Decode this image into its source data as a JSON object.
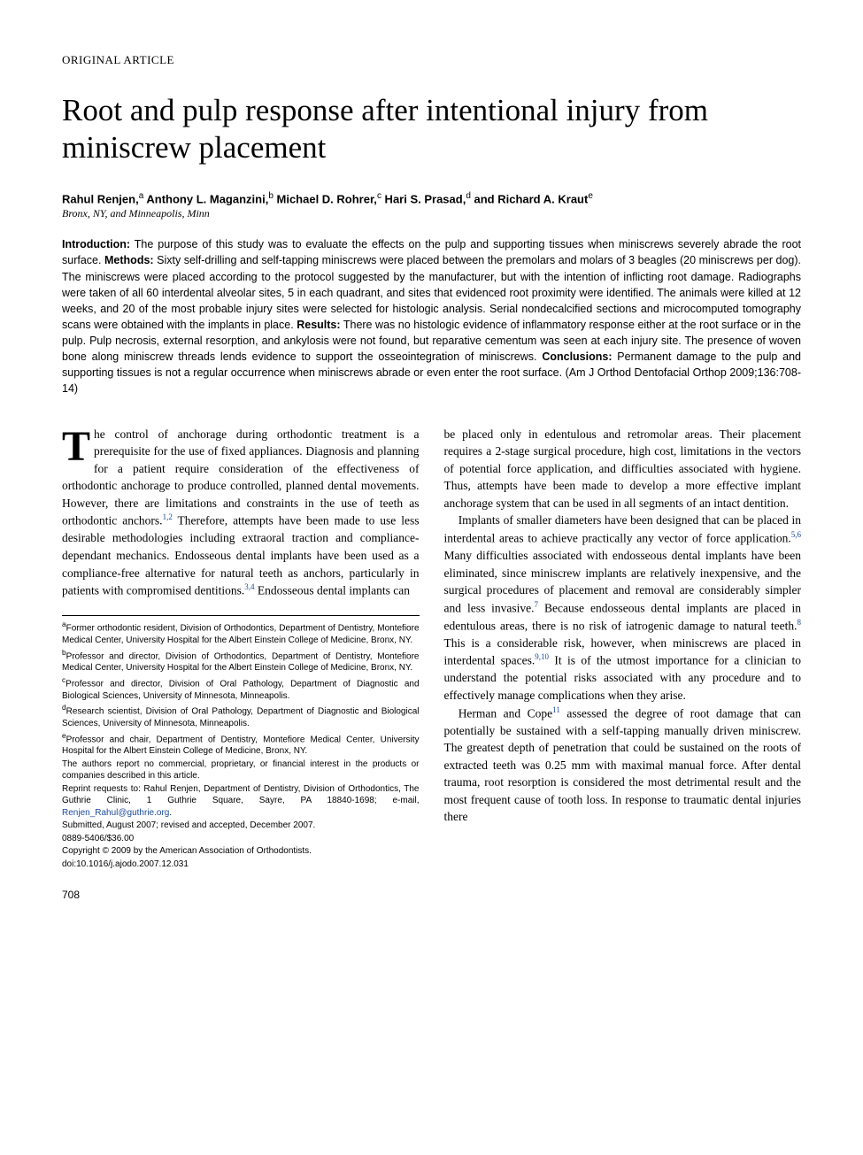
{
  "section_label": "ORIGINAL ARTICLE",
  "title": "Root and pulp response after intentional injury from miniscrew placement",
  "authors_html": "Rahul Renjen,<sup>a</sup> Anthony L. Maganzini,<sup>b</sup> Michael D. Rohrer,<sup>c</sup> Hari S. Prasad,<sup>d</sup> and Richard A. Kraut<sup>e</sup>",
  "affil_line": "Bronx, NY, and Minneapolis, Minn",
  "abstract": {
    "intro_label": "Introduction:",
    "intro": " The purpose of this study was to evaluate the effects on the pulp and supporting tissues when miniscrews severely abrade the root surface. ",
    "methods_label": "Methods:",
    "methods": " Sixty self-drilling and self-tapping miniscrews were placed between the premolars and molars of 3 beagles (20 miniscrews per dog). The miniscrews were placed according to the protocol suggested by the manufacturer, but with the intention of inflicting root damage. Radiographs were taken of all 60 interdental alveolar sites, 5 in each quadrant, and sites that evidenced root proximity were identified. The animals were killed at 12 weeks, and 20 of the most probable injury sites were selected for histologic analysis. Serial nondecalcified sections and microcomputed tomography scans were obtained with the implants in place. ",
    "results_label": "Results:",
    "results": " There was no histologic evidence of inflammatory response either at the root surface or in the pulp. Pulp necrosis, external resorption, and ankylosis were not found, but reparative cementum was seen at each injury site. The presence of woven bone along miniscrew threads lends evidence to support the osseointegration of miniscrews. ",
    "conclusions_label": "Conclusions:",
    "conclusions": " Permanent damage to the pulp and supporting tissues is not a regular occurrence when miniscrews abrade or even enter the root surface. (Am J Orthod Dentofacial Orthop 2009;136:708-14)"
  },
  "body": {
    "col1": {
      "p1_dropcap": "T",
      "p1_rest": "he control of anchorage during orthodontic treatment is a prerequisite for the use of fixed appliances. Diagnosis and planning for a patient require consideration of the effectiveness of orthodontic anchorage to produce controlled, planned dental movements. However, there are limitations and constraints in the use of teeth as orthodontic anchors.",
      "p1_sup1": "1,2",
      "p1_after1": " Therefore, attempts have been made to use less desirable methodologies including extraoral traction and compliance-dependant mechanics. Endosseous dental implants have been used as a compliance-free alternative for natural teeth as anchors, particularly in patients with compromised dentitions.",
      "p1_sup2": "3,4",
      "p1_after2": " Endosseous dental implants can"
    },
    "col2": {
      "p1": "be placed only in edentulous and retromolar areas. Their placement requires a 2-stage surgical procedure, high cost, limitations in the vectors of potential force application, and difficulties associated with hygiene. Thus, attempts have been made to develop a more effective implant anchorage system that can be used in all segments of an intact dentition.",
      "p2_a": "Implants of smaller diameters have been designed that can be placed in interdental areas to achieve practically any vector of force application.",
      "p2_sup1": "5,6",
      "p2_b": " Many difficulties associated with endosseous dental implants have been eliminated, since miniscrew implants are relatively inexpensive, and the surgical procedures of placement and removal are considerably simpler and less invasive.",
      "p2_sup2": "7",
      "p2_c": " Because endosseous dental implants are placed in edentulous areas, there is no risk of iatrogenic damage to natural teeth.",
      "p2_sup3": "8",
      "p2_d": " This is a considerable risk, however, when miniscrews are placed in interdental spaces.",
      "p2_sup4": "9,10",
      "p2_e": " It is of the utmost importance for a clinician to understand the potential risks associated with any procedure and to effectively manage complications when they arise.",
      "p3_a": "Herman and Cope",
      "p3_sup1": "11",
      "p3_b": " assessed the degree of root damage that can potentially be sustained with a self-tapping manually driven miniscrew. The greatest depth of penetration that could be sustained on the roots of extracted teeth was 0.25 mm with maximal manual force. After dental trauma, root resorption is considered the most detrimental result and the most frequent cause of tooth loss. In response to traumatic dental injuries there"
    }
  },
  "footnotes": {
    "a": "Former orthodontic resident, Division of Orthodontics, Department of Dentistry, Montefiore Medical Center, University Hospital for the Albert Einstein College of Medicine, Bronx, NY.",
    "b": "Professor and director, Division of Orthodontics, Department of Dentistry, Montefiore Medical Center, University Hospital for the Albert Einstein College of Medicine, Bronx, NY.",
    "c": "Professor and director, Division of Oral Pathology, Department of Diagnostic and Biological Sciences, University of Minnesota, Minneapolis.",
    "d": "Research scientist, Division of Oral Pathology, Department of Diagnostic and Biological Sciences, University of Minnesota, Minneapolis.",
    "e": "Professor and chair, Department of Dentistry, Montefiore Medical Center, University Hospital for the Albert Einstein College of Medicine, Bronx, NY.",
    "disclosure": "The authors report no commercial, proprietary, or financial interest in the products or companies described in this article.",
    "reprint": "Reprint requests to: Rahul Renjen, Department of Dentistry, Division of Orthodontics, The Guthrie Clinic, 1 Guthrie Square, Sayre, PA 18840-1698; e-mail, ",
    "reprint_email": "Renjen_Rahul@guthrie.org",
    "reprint_after": ".",
    "submitted": "Submitted, August 2007; revised and accepted, December 2007.",
    "issn": "0889-5406/$36.00",
    "copyright": "Copyright © 2009 by the American Association of Orthodontists.",
    "doi": "doi:10.1016/j.ajodo.2007.12.031"
  },
  "pagenum": "708"
}
